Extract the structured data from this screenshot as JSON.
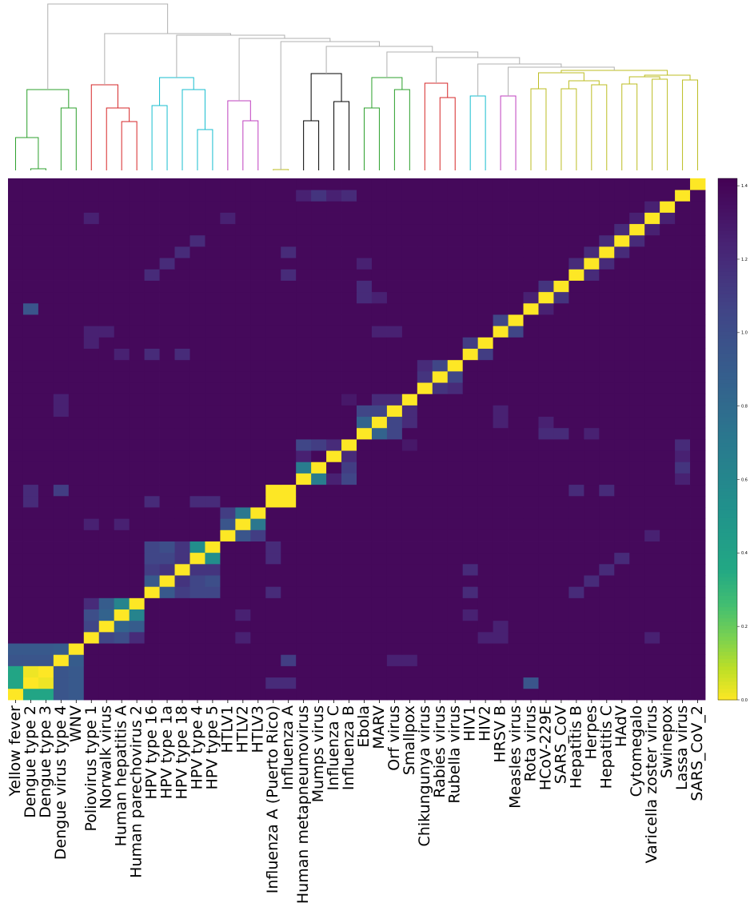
{
  "chart_data": {
    "type": "heatmap",
    "title": "",
    "xlabel": "",
    "ylabel": "",
    "has_dendrogram": true,
    "row_labels_shown": false,
    "colormap": "viridis_r",
    "origin": "bottom-left",
    "labels": [
      "Yellow fever",
      "Dengue type 2",
      "Dengue type 3",
      "Dengue virus type 4",
      "WNV",
      "Poliovirus type 1",
      "Norwalk virus",
      "Human hepatitis A",
      "Human parechovirus 2",
      "HPV type 16",
      "HPV type 1a",
      "HPV type 18",
      "HPV type 4",
      "HPV type 5",
      "HTLV1",
      "HTLV2",
      "HTLV3",
      "Influenza A (Puerto Rico)",
      "Influenza A",
      "Human metapneumovirus",
      "Mumps virus",
      "Influenza C",
      "Influenza B",
      "Ebola",
      "MARV",
      "Orf virus",
      "Smallpox",
      "Chikungunya virus",
      "Rabies virus",
      "Rubella virus",
      "HIV1",
      "HIV2",
      "HRSV B",
      "Measles virus",
      "Rota virus",
      "HCoV-229E",
      "SARS_CoV",
      "Hepatitis B",
      "Herpes",
      "Hepatitis C",
      "HAdV",
      "Cytomegalo",
      "Varicella zoster virus",
      "Swinepox",
      "Lassa virus",
      "SARS_CoV_2"
    ],
    "colorbar": {
      "vmin": 0.0,
      "vmax": 1.42,
      "ticks": [
        "0.0",
        "0.2",
        "0.4",
        "0.6",
        "0.8",
        "1.0",
        "1.2",
        "1.4"
      ]
    },
    "background_value": 1.38,
    "blocks": [
      {
        "i": 0,
        "j": 0,
        "v": 0.0
      },
      {
        "i": 1,
        "j": 1,
        "v": 0.0
      },
      {
        "i": 2,
        "j": 2,
        "v": 0.0
      },
      {
        "i": 1,
        "j": 2,
        "v": 0.02
      },
      {
        "i": 0,
        "j": 1,
        "v": 0.38
      },
      {
        "i": 0,
        "j": 2,
        "v": 0.38
      },
      {
        "i": 3,
        "j": 3,
        "v": 0.0
      },
      {
        "i": 4,
        "j": 4,
        "v": 0.0
      },
      {
        "i": 0,
        "j": 3,
        "v": 0.95
      },
      {
        "i": 1,
        "j": 3,
        "v": 0.95
      },
      {
        "i": 2,
        "j": 3,
        "v": 0.95
      },
      {
        "i": 0,
        "j": 4,
        "v": 0.92
      },
      {
        "i": 1,
        "j": 4,
        "v": 0.92
      },
      {
        "i": 2,
        "j": 4,
        "v": 0.92
      },
      {
        "i": 3,
        "j": 4,
        "v": 0.9
      },
      {
        "i": 5,
        "j": 5,
        "v": 0.0
      },
      {
        "i": 6,
        "j": 6,
        "v": 0.0
      },
      {
        "i": 7,
        "j": 7,
        "v": 0.0
      },
      {
        "i": 8,
        "j": 8,
        "v": 0.0
      },
      {
        "i": 5,
        "j": 6,
        "v": 1.05
      },
      {
        "i": 5,
        "j": 7,
        "v": 1.0
      },
      {
        "i": 5,
        "j": 8,
        "v": 1.2
      },
      {
        "i": 6,
        "j": 7,
        "v": 0.85
      },
      {
        "i": 6,
        "j": 8,
        "v": 0.9
      },
      {
        "i": 7,
        "j": 8,
        "v": 0.62
      },
      {
        "i": 9,
        "j": 9,
        "v": 0.0
      },
      {
        "i": 10,
        "j": 10,
        "v": 0.0
      },
      {
        "i": 11,
        "j": 11,
        "v": 0.0
      },
      {
        "i": 12,
        "j": 12,
        "v": 0.0
      },
      {
        "i": 13,
        "j": 13,
        "v": 0.0
      },
      {
        "i": 9,
        "j": 10,
        "v": 0.92
      },
      {
        "i": 9,
        "j": 11,
        "v": 1.1
      },
      {
        "i": 9,
        "j": 12,
        "v": 1.05
      },
      {
        "i": 9,
        "j": 13,
        "v": 1.05
      },
      {
        "i": 10,
        "j": 11,
        "v": 1.15
      },
      {
        "i": 10,
        "j": 12,
        "v": 1.05
      },
      {
        "i": 10,
        "j": 13,
        "v": 1.0
      },
      {
        "i": 11,
        "j": 12,
        "v": 1.15
      },
      {
        "i": 11,
        "j": 13,
        "v": 1.15
      },
      {
        "i": 12,
        "j": 13,
        "v": 0.55
      },
      {
        "i": 14,
        "j": 14,
        "v": 0.0
      },
      {
        "i": 15,
        "j": 15,
        "v": 0.0
      },
      {
        "i": 16,
        "j": 16,
        "v": 0.0
      },
      {
        "i": 14,
        "j": 15,
        "v": 0.95
      },
      {
        "i": 14,
        "j": 16,
        "v": 1.1
      },
      {
        "i": 15,
        "j": 16,
        "v": 0.72
      },
      {
        "i": 17,
        "j": 17,
        "v": 0.0
      },
      {
        "i": 18,
        "j": 18,
        "v": 0.0
      },
      {
        "i": 17,
        "j": 18,
        "v": 0.0
      },
      {
        "i": 19,
        "j": 19,
        "v": 0.0
      },
      {
        "i": 20,
        "j": 20,
        "v": 0.0
      },
      {
        "i": 19,
        "j": 20,
        "v": 0.68
      },
      {
        "i": 21,
        "j": 21,
        "v": 0.0
      },
      {
        "i": 22,
        "j": 22,
        "v": 0.0
      },
      {
        "i": 19,
        "j": 22,
        "v": 1.05
      },
      {
        "i": 20,
        "j": 22,
        "v": 1.1
      },
      {
        "i": 21,
        "j": 22,
        "v": 1.2
      },
      {
        "i": 19,
        "j": 21,
        "v": 1.25
      },
      {
        "i": 23,
        "j": 23,
        "v": 0.0
      },
      {
        "i": 24,
        "j": 24,
        "v": 0.0
      },
      {
        "i": 25,
        "j": 25,
        "v": 0.0
      },
      {
        "i": 26,
        "j": 26,
        "v": 0.0
      },
      {
        "i": 23,
        "j": 24,
        "v": 0.85
      },
      {
        "i": 23,
        "j": 25,
        "v": 1.05
      },
      {
        "i": 24,
        "j": 25,
        "v": 1.05
      },
      {
        "i": 24,
        "j": 26,
        "v": 1.2
      },
      {
        "i": 25,
        "j": 26,
        "v": 1.2
      },
      {
        "i": 27,
        "j": 27,
        "v": 0.0
      },
      {
        "i": 28,
        "j": 28,
        "v": 0.0
      },
      {
        "i": 29,
        "j": 29,
        "v": 0.0
      },
      {
        "i": 27,
        "j": 28,
        "v": 1.15
      },
      {
        "i": 28,
        "j": 29,
        "v": 1.05
      },
      {
        "i": 27,
        "j": 29,
        "v": 1.2
      },
      {
        "i": 30,
        "j": 30,
        "v": 0.0
      },
      {
        "i": 31,
        "j": 31,
        "v": 0.0
      },
      {
        "i": 30,
        "j": 31,
        "v": 1.1
      },
      {
        "i": 32,
        "j": 32,
        "v": 0.0
      },
      {
        "i": 33,
        "j": 33,
        "v": 0.0
      },
      {
        "i": 32,
        "j": 33,
        "v": 1.05
      },
      {
        "i": 34,
        "j": 34,
        "v": 0.0
      },
      {
        "i": 35,
        "j": 35,
        "v": 0.0
      },
      {
        "i": 36,
        "j": 36,
        "v": 0.0
      },
      {
        "i": 35,
        "j": 36,
        "v": 1.15
      },
      {
        "i": 34,
        "j": 35,
        "v": 1.25
      },
      {
        "i": 37,
        "j": 37,
        "v": 0.0
      },
      {
        "i": 38,
        "j": 38,
        "v": 0.0
      },
      {
        "i": 39,
        "j": 39,
        "v": 0.0
      },
      {
        "i": 40,
        "j": 40,
        "v": 0.0
      },
      {
        "i": 41,
        "j": 41,
        "v": 0.0
      },
      {
        "i": 42,
        "j": 42,
        "v": 0.0
      },
      {
        "i": 43,
        "j": 43,
        "v": 0.0
      },
      {
        "i": 44,
        "j": 44,
        "v": 0.0
      },
      {
        "i": 45,
        "j": 45,
        "v": 0.0
      },
      {
        "i": 37,
        "j": 38,
        "v": 1.2
      },
      {
        "i": 38,
        "j": 39,
        "v": 1.2
      },
      {
        "i": 39,
        "j": 40,
        "v": 1.2
      },
      {
        "i": 40,
        "j": 41,
        "v": 1.2
      },
      {
        "i": 41,
        "j": 42,
        "v": 1.25
      },
      {
        "i": 42,
        "j": 43,
        "v": 1.25
      },
      {
        "i": 9,
        "j": 37,
        "v": 1.2
      },
      {
        "i": 10,
        "j": 38,
        "v": 1.2
      },
      {
        "i": 11,
        "j": 39,
        "v": 1.2
      },
      {
        "i": 12,
        "j": 40,
        "v": 1.2
      },
      {
        "i": 9,
        "j": 30,
        "v": 1.2
      },
      {
        "i": 11,
        "j": 30,
        "v": 1.2
      },
      {
        "i": 17,
        "j": 9,
        "v": 1.2
      },
      {
        "i": 17,
        "j": 12,
        "v": 1.2
      },
      {
        "i": 17,
        "j": 13,
        "v": 1.2
      },
      {
        "i": 18,
        "j": 3,
        "v": 1.1
      },
      {
        "i": 18,
        "j": 37,
        "v": 1.2
      },
      {
        "i": 18,
        "j": 39,
        "v": 1.2
      },
      {
        "i": 12,
        "j": 17,
        "v": 1.2
      },
      {
        "i": 13,
        "j": 17,
        "v": 1.2
      },
      {
        "i": 1,
        "j": 17,
        "v": 1.2
      },
      {
        "i": 1,
        "j": 18,
        "v": 1.2
      },
      {
        "i": 1,
        "j": 34,
        "v": 0.95
      },
      {
        "i": 3,
        "j": 25,
        "v": 1.25
      },
      {
        "i": 3,
        "j": 26,
        "v": 1.25
      },
      {
        "i": 5,
        "j": 15,
        "v": 1.25
      },
      {
        "i": 7,
        "j": 15,
        "v": 1.25
      },
      {
        "i": 22,
        "j": 26,
        "v": 1.3
      },
      {
        "i": 24,
        "j": 32,
        "v": 1.25
      },
      {
        "i": 25,
        "j": 32,
        "v": 1.25
      },
      {
        "i": 22,
        "j": 44,
        "v": 1.2
      },
      {
        "i": 21,
        "j": 44,
        "v": 1.25
      },
      {
        "i": 23,
        "j": 38,
        "v": 1.25
      },
      {
        "i": 30,
        "j": 7,
        "v": 1.25
      },
      {
        "i": 32,
        "j": 5,
        "v": 1.25
      },
      {
        "i": 32,
        "j": 6,
        "v": 1.25
      },
      {
        "i": 31,
        "j": 5,
        "v": 1.25
      },
      {
        "i": 35,
        "j": 23,
        "v": 1.2
      },
      {
        "i": 36,
        "j": 23,
        "v": 1.2
      },
      {
        "i": 35,
        "j": 24,
        "v": 1.25
      },
      {
        "i": 42,
        "j": 5,
        "v": 1.25
      },
      {
        "i": 42,
        "j": 14,
        "v": 1.25
      },
      {
        "i": 44,
        "j": 19,
        "v": 1.25
      },
      {
        "i": 44,
        "j": 20,
        "v": 1.15
      },
      {
        "i": 44,
        "j": 22,
        "v": 1.2
      }
    ],
    "dendrogram_colors": [
      "#2ca02c",
      "#d62728",
      "#17becf",
      "#bf3fbf",
      "#bcbd22",
      "#000000",
      "#2ca02c",
      "#d62728",
      "#17becf",
      "#bf3fbf",
      "#bcbd22",
      "#b0b0b0"
    ]
  }
}
